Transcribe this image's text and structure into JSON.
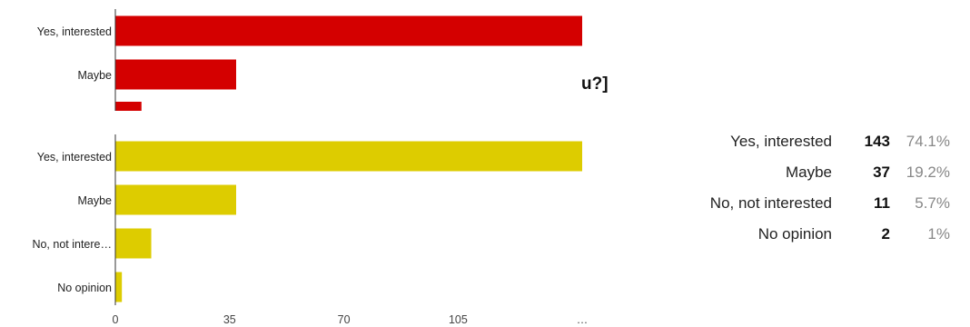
{
  "fragment_text": "u?]",
  "chart_data": [
    {
      "type": "bar",
      "orientation": "horizontal",
      "categories": [
        "Yes, interested",
        "Maybe",
        ""
      ],
      "values": [
        143,
        37,
        8
      ],
      "color": "#d40000",
      "clipped_at_top": true,
      "xlim": [
        0,
        143
      ]
    },
    {
      "type": "bar",
      "orientation": "horizontal",
      "categories": [
        "Yes, interested",
        "Maybe",
        "No, not intere…",
        "No opinion"
      ],
      "values": [
        143,
        37,
        11,
        2
      ],
      "color": "#ddcc00",
      "xlim": [
        0,
        143
      ],
      "xticks": [
        "0",
        "35",
        "70",
        "105",
        "…"
      ],
      "xtick_values": [
        0,
        35,
        70,
        105,
        143
      ]
    }
  ],
  "summary": {
    "rows": [
      {
        "label": "Yes, interested",
        "count": "143",
        "percent": "74.1%"
      },
      {
        "label": "Maybe",
        "count": "37",
        "percent": "19.2%"
      },
      {
        "label": "No, not interested",
        "count": "11",
        "percent": "5.7%"
      },
      {
        "label": "No opinion",
        "count": "2",
        "percent": "1%"
      }
    ]
  }
}
